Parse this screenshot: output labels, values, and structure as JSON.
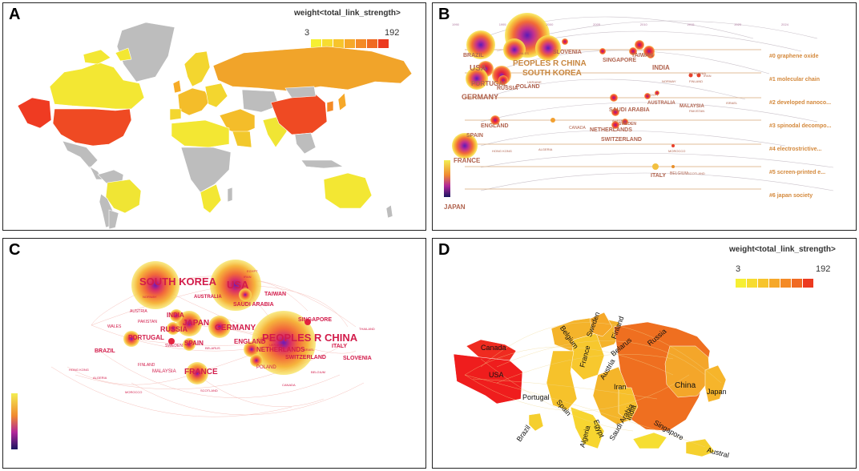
{
  "panels": {
    "a": {
      "label": "A"
    },
    "b": {
      "label": "B"
    },
    "c": {
      "label": "C"
    },
    "d": {
      "label": "D"
    }
  },
  "legend": {
    "title": "weight<total_link_strength>",
    "min": "3",
    "max": "192",
    "colors": [
      "#f6ef33",
      "#f7dc30",
      "#f7c42c",
      "#f6a829",
      "#f48a26",
      "#f06a22",
      "#ec3a1f"
    ]
  },
  "timeline": {
    "years": [
      "1990",
      "1995",
      "2000",
      "2005",
      "2010",
      "2015",
      "2020",
      "2024"
    ],
    "clusters": [
      "#0 graphene oxide",
      "#1 molecular chain",
      "#2 developed nanoco...",
      "#3 spinodal decompo...",
      "#4 electrostrictive...",
      "#5 screen-printed e...",
      "#6 japan society"
    ],
    "countries": [
      "BRAZIL",
      "USA",
      "PORTUGAL",
      "PEOPLES R CHINA",
      "SOUTH KOREA",
      "GERMANY",
      "RUSSIA",
      "POLAND",
      "SLOVENIA",
      "SINGAPORE",
      "TAIWAN",
      "INDIA",
      "ENGLAND",
      "SPAIN",
      "NETHERLANDS",
      "SWEDEN",
      "SAUDI ARABIA",
      "AUSTRALIA",
      "MALAYSIA",
      "SWITZERLAND",
      "FRANCE",
      "CANADA",
      "ITALY",
      "BELGIUM",
      "JAPAN",
      "PAKISTAN",
      "UKRAINE",
      "ISRAEL",
      "NORWAY",
      "FINLAND",
      "LITHUANIA",
      "EGYPT",
      "SCOTLAND",
      "HONG KONG",
      "ALGERIA",
      "MOROCCO",
      "WALES",
      "IRAN",
      "AUSTRIA"
    ]
  },
  "network": {
    "countries": [
      "SOUTH KOREA",
      "USA",
      "PEOPLES R CHINA",
      "TAIWAN",
      "AUSTRALIA",
      "SAUDI ARABIA",
      "SINGAPORE",
      "INDIA",
      "JAPAN",
      "RUSSIA",
      "GERMANY",
      "PAKISTAN",
      "AUSTRIA",
      "WALES",
      "PORTUGAL",
      "SPAIN",
      "ENGLAND",
      "NETHERLANDS",
      "ITALY",
      "SLOVENIA",
      "SWITZERLAND",
      "BRAZIL",
      "FRANCE",
      "POLAND",
      "FINLAND",
      "MALAYSIA",
      "SWEDEN",
      "HONG KONG",
      "ALGERIA",
      "MOROCCO",
      "SCOTLAND",
      "CANADA",
      "BELGIUM",
      "ISRAEL",
      "NORWAY",
      "EGYPT",
      "IRAN",
      "UKRAINE",
      "LITHUANIA",
      "THAILAND",
      "BELARUS"
    ]
  },
  "cartogram": {
    "labels": [
      "Canada",
      "Belgium",
      "Sweden",
      "Finland",
      "Russia",
      "France",
      "Belarus",
      "Austria",
      "Iran",
      "China",
      "Japan",
      "USA",
      "Portugal",
      "Spain",
      "India",
      "Saudi Arabia",
      "Egypt",
      "Algeria",
      "Singapore",
      "Brazil",
      "Austral"
    ]
  }
}
